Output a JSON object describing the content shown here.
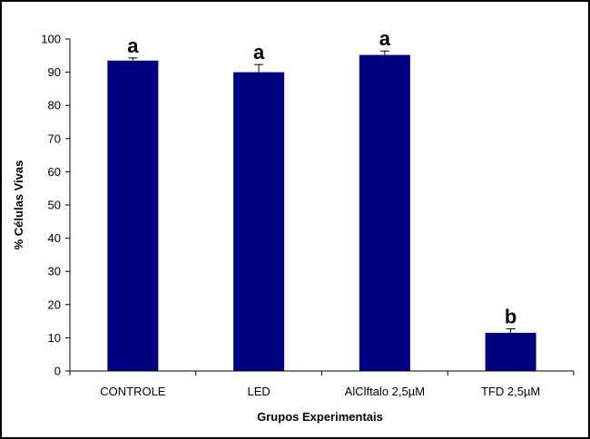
{
  "chart_data": {
    "type": "bar",
    "categories": [
      "CONTROLE",
      "LED",
      "AlClftalo 2,5µM",
      "TFD 2,5µM"
    ],
    "values": [
      93.5,
      90,
      95.2,
      11.5
    ],
    "errors": [
      0.8,
      2.3,
      1.2,
      1.2
    ],
    "significance": [
      "a",
      "a",
      "a",
      "b"
    ],
    "xlabel": "Grupos Experimentais",
    "ylabel": "% Células Vivas",
    "ylim": [
      0,
      100
    ],
    "yticks": [
      0,
      10,
      20,
      30,
      40,
      50,
      60,
      70,
      80,
      90,
      100
    ],
    "bar_color": "#000080",
    "grid": false,
    "legend": "none"
  }
}
